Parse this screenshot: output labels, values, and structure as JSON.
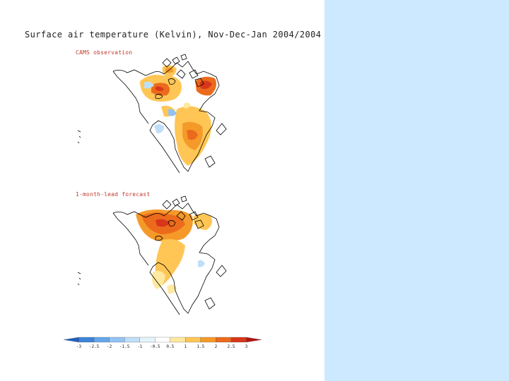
{
  "title": "Surface air temperature (Kelvin), Nov-Dec-Jan 2004/2004",
  "panels": [
    {
      "label": "CAMS observation"
    },
    {
      "label": "1-month-lead forecast"
    }
  ],
  "colorbar": {
    "levels": [
      "-3",
      "-2.5",
      "-2",
      "-1.5",
      "-1",
      "-0.5",
      "0.5",
      "1",
      "1.5",
      "2",
      "2.5",
      "3"
    ],
    "colors": [
      "#1f5fbf",
      "#3d84d8",
      "#66a6ea",
      "#92c3f3",
      "#bfdef8",
      "#e5f3fb",
      "#ffffff",
      "#ffe8a0",
      "#ffc655",
      "#f59a2a",
      "#ec6a1c",
      "#d8361a",
      "#b4140f"
    ]
  },
  "colors": {
    "background_right": "#cce9ff",
    "label": "#c0392b"
  }
}
